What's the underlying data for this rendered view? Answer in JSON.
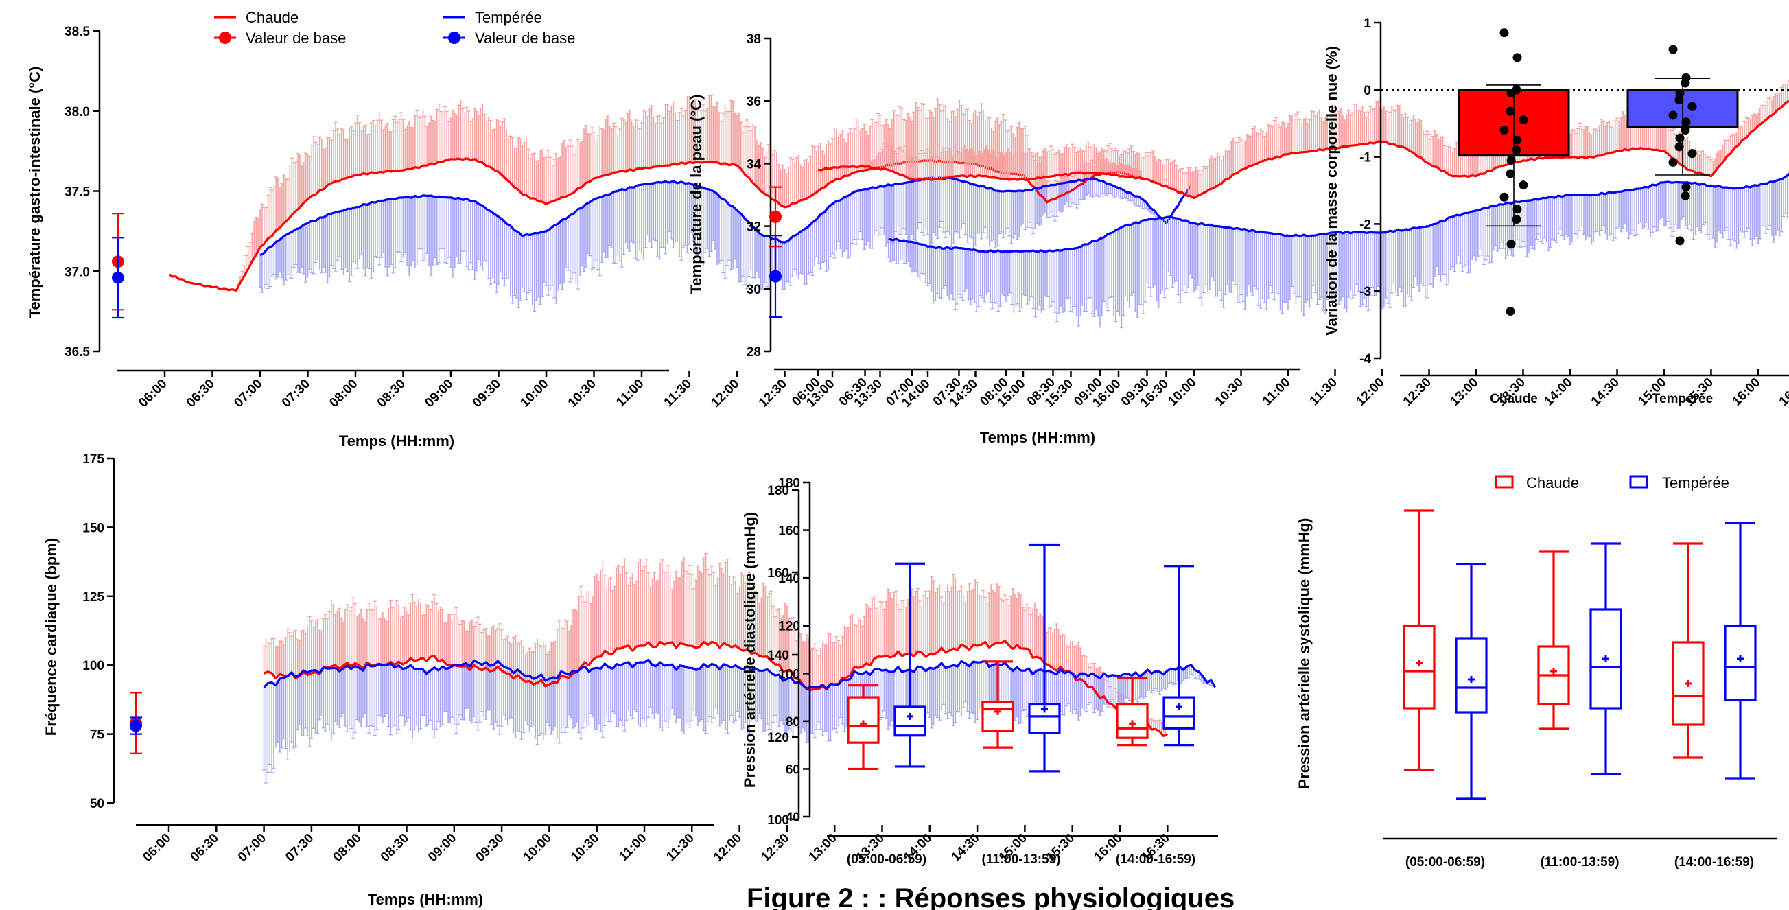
{
  "caption": "Figure 2 : : Réponses physiologiques",
  "colors": {
    "chaude": "#ff0000",
    "temperee": "#0000ff",
    "chaude_fill": "#f8a0a0",
    "temperee_fill": "#a8a8f5",
    "chaude_bar": "#ff0000",
    "temperee_bar": "#5050ff"
  },
  "chart_data": [
    {
      "type": "line",
      "ylabel": "Température gastro-intestinale (°C)",
      "xlabel": "Temps (HH:mm)",
      "ylim": [
        36.5,
        38.5
      ],
      "yticks": [
        "36.5",
        "37.0",
        "37.5",
        "38.0",
        "38.5"
      ],
      "xticks": [
        "06:00",
        "06:30",
        "07:00",
        "07:30",
        "08:00",
        "08:30",
        "09:00",
        "09:30",
        "10:00",
        "10:30",
        "11:00",
        "11:30",
        "12:00",
        "12:30",
        "13:00",
        "13:30",
        "14:00",
        "14:30",
        "15:00",
        "15:30",
        "16:00",
        "16:30"
      ],
      "legend": [
        "Chaude",
        "Valeur de base",
        "Tempérée",
        "Valeur de base"
      ],
      "baseline": [
        {
          "name": "Chaude",
          "mean": 37.06,
          "sd": 0.3
        },
        {
          "name": "Tempérée",
          "mean": 36.96,
          "sd": 0.25
        }
      ],
      "x": [
        6.05,
        6.25,
        6.5,
        6.75,
        7.0,
        7.25,
        7.5,
        7.75,
        8.0,
        8.25,
        8.5,
        8.75,
        9.0,
        9.25,
        9.5,
        9.75,
        10.0,
        10.25,
        10.5,
        10.75,
        11.0,
        11.25,
        11.5,
        11.75,
        12.0,
        12.25,
        12.5,
        12.75,
        13.0,
        13.25,
        13.5,
        13.75,
        14.0,
        14.25,
        14.5,
        14.75,
        15.0,
        15.25,
        15.5,
        15.75,
        16.0,
        16.25,
        16.5,
        16.75
      ],
      "series": [
        {
          "name": "Chaude",
          "x_start": 6.05,
          "x_end": 16.25,
          "values": [
            36.98,
            36.93,
            36.9,
            36.88,
            37.15,
            37.3,
            37.45,
            37.55,
            37.6,
            37.62,
            37.63,
            37.66,
            37.7,
            37.7,
            37.62,
            37.48,
            37.42,
            37.48,
            37.58,
            37.62,
            37.64,
            37.66,
            37.68,
            37.68,
            37.66,
            37.5,
            37.4,
            37.46,
            37.56,
            37.62,
            37.65,
            37.68,
            37.69,
            37.68,
            37.67,
            37.62,
            37.6,
            37.43,
            37.5,
            37.6,
            37.62,
            37.58,
            null,
            null
          ],
          "sd": [
            0,
            0,
            0,
            0,
            0.25,
            0.3,
            0.3,
            0.3,
            0.3,
            0.3,
            0.3,
            0.3,
            0.3,
            0.3,
            0.3,
            0.3,
            0.28,
            0.3,
            0.3,
            0.3,
            0.32,
            0.33,
            0.35,
            0.35,
            0.33,
            0.3,
            0.25,
            0.25,
            0.27,
            0.27,
            0.28,
            0.3,
            0.32,
            0.32,
            0.32,
            0.3,
            0.28,
            0.12,
            0.1,
            0.1,
            0.05,
            0.05,
            0,
            0
          ]
        },
        {
          "name": "Tempérée",
          "x_start": 7.0,
          "x_end": 16.75,
          "values": [
            null,
            null,
            null,
            null,
            37.1,
            37.22,
            37.3,
            37.36,
            37.4,
            37.44,
            37.46,
            37.47,
            37.46,
            37.44,
            37.34,
            37.22,
            37.25,
            37.35,
            37.45,
            37.5,
            37.54,
            37.56,
            37.55,
            37.5,
            37.38,
            37.23,
            37.18,
            37.28,
            37.42,
            37.5,
            37.53,
            37.55,
            37.58,
            37.58,
            37.54,
            37.5,
            37.5,
            37.53,
            37.56,
            37.58,
            37.52,
            37.45,
            37.3,
            37.53
          ],
          "sd": [
            0,
            0,
            0,
            0,
            0.2,
            0.25,
            0.3,
            0.35,
            0.38,
            0.4,
            0.4,
            0.4,
            0.4,
            0.4,
            0.4,
            0.4,
            0.4,
            0.4,
            0.4,
            0.4,
            0.4,
            0.4,
            0.4,
            0.4,
            0.4,
            0.3,
            0.25,
            0.3,
            0.33,
            0.33,
            0.32,
            0.33,
            0.35,
            0.35,
            0.33,
            0.3,
            0.25,
            0.2,
            0.15,
            0.1,
            0.05,
            0.05,
            0,
            0
          ]
        }
      ]
    },
    {
      "type": "line",
      "ylabel": "Température de la peau (°C)",
      "xlabel": "Temps (HH:mm)",
      "ylim": [
        28,
        38
      ],
      "yticks": [
        "28",
        "30",
        "32",
        "34",
        "36",
        "38"
      ],
      "xticks": [
        "06:00",
        "06:30",
        "07:00",
        "07:30",
        "08:00",
        "08:30",
        "09:00",
        "09:30",
        "10:00",
        "10:30",
        "11:00",
        "11:30",
        "12:00",
        "12:30",
        "13:00",
        "13:30",
        "14:00",
        "14:30",
        "15:00",
        "15:30",
        "16:00",
        "16:30"
      ],
      "baseline": [
        {
          "name": "Chaude",
          "mean": 32.3,
          "sd": 0.95
        },
        {
          "name": "Tempérée",
          "mean": 30.4,
          "sd": 1.3
        }
      ],
      "x": [
        6.0,
        6.25,
        6.5,
        6.75,
        7.0,
        7.25,
        7.5,
        7.75,
        8.0,
        8.25,
        8.5,
        8.75,
        9.0,
        9.25,
        9.5,
        9.75,
        10.0,
        10.25,
        10.5,
        10.75,
        11.0,
        11.25,
        11.5,
        11.75,
        12.0,
        12.25,
        12.5,
        12.75,
        13.0,
        13.25,
        13.5,
        13.75,
        14.0,
        14.25,
        14.5,
        14.75,
        15.0,
        15.25,
        15.5,
        15.75,
        16.0,
        16.25,
        16.5,
        16.75
      ],
      "series": [
        {
          "name": "Chaude",
          "x_start": 6.0,
          "x_end": 16.75,
          "values": [
            33.8,
            33.9,
            33.9,
            33.8,
            33.5,
            33.5,
            33.6,
            33.6,
            33.5,
            33.5,
            33.6,
            33.7,
            33.7,
            33.6,
            33.5,
            33.2,
            32.9,
            33.3,
            33.8,
            34.1,
            34.3,
            34.4,
            34.5,
            34.6,
            34.7,
            34.5,
            34.0,
            33.6,
            33.6,
            33.9,
            34.1,
            34.2,
            34.2,
            34.2,
            34.4,
            34.5,
            34.4,
            33.8,
            33.6,
            34.5,
            35.2,
            35.8,
            36.5,
            36.2
          ],
          "sd": [
            0,
            0,
            0,
            0.8,
            0.8,
            0.8,
            0.8,
            0.8,
            0.8,
            0.8,
            0.8,
            0.8,
            0.8,
            0.8,
            0.8,
            0.8,
            0.8,
            0.9,
            1.0,
            1.0,
            1.1,
            1.1,
            1.1,
            1.1,
            1.1,
            1.1,
            1.0,
            0.9,
            0.9,
            0.9,
            0.9,
            0.9,
            0.9,
            0.9,
            1.0,
            1.0,
            1.0,
            0.9,
            0.5,
            0.5,
            0.5,
            0.6,
            0.3,
            0.0
          ]
        },
        {
          "name": "Tempérée",
          "x_start": 6.75,
          "x_end": 16.75,
          "values": [
            null,
            null,
            null,
            31.6,
            31.5,
            31.3,
            31.3,
            31.2,
            31.2,
            31.2,
            31.2,
            31.3,
            31.6,
            32.0,
            32.2,
            32.3,
            32.1,
            32.0,
            31.9,
            31.8,
            31.7,
            31.7,
            31.8,
            31.8,
            31.8,
            31.9,
            32.0,
            32.3,
            32.5,
            32.7,
            32.8,
            32.9,
            33.0,
            33.0,
            33.1,
            33.2,
            33.4,
            33.4,
            33.3,
            33.2,
            33.3,
            33.5,
            34.0,
            34.5
          ],
          "sd": [
            0,
            0,
            0,
            0.6,
            0.8,
            1.5,
            1.6,
            1.6,
            1.6,
            1.7,
            1.8,
            2.0,
            2.3,
            2.7,
            2.5,
            2.2,
            2.1,
            2.1,
            2.1,
            2.1,
            2.1,
            2.1,
            2.1,
            2.1,
            2.1,
            2.1,
            1.9,
            1.7,
            1.6,
            1.5,
            1.5,
            1.4,
            1.3,
            1.3,
            1.3,
            1.3,
            1.4,
            1.4,
            1.6,
            1.6,
            1.6,
            1.6,
            0.6,
            0.0
          ]
        }
      ]
    },
    {
      "type": "bar",
      "ylabel": "Variation de la masse corporelle nue (%)",
      "ylim": [
        -4,
        1
      ],
      "yticks": [
        "-4",
        "-3",
        "-2",
        "-1",
        "0",
        "1"
      ],
      "categories": [
        "Chaude",
        "Tempérée"
      ],
      "values": [
        -0.98,
        -0.55
      ],
      "errors": [
        1.05,
        0.72
      ],
      "points": [
        [
          0.85,
          0.48,
          0.0,
          -0.05,
          -0.32,
          -0.45,
          -0.6,
          -0.75,
          -0.9,
          -1.05,
          -1.25,
          -1.42,
          -1.6,
          -1.78,
          -1.93,
          -2.3,
          -3.3
        ],
        [
          0.6,
          0.18,
          0.1,
          -0.05,
          -0.15,
          -0.25,
          -0.38,
          -0.48,
          -0.6,
          -0.72,
          -0.85,
          -0.95,
          -1.08,
          -1.45,
          -1.58,
          -2.25
        ]
      ]
    },
    {
      "type": "line",
      "ylabel": "Fréquence cardiaque (bpm)",
      "xlabel": "Temps (HH:mm)",
      "ylim": [
        50,
        175
      ],
      "yticks": [
        "50",
        "75",
        "100",
        "125",
        "150",
        "175"
      ],
      "xticks": [
        "06:00",
        "06:30",
        "07:00",
        "07:30",
        "08:00",
        "08:30",
        "09:00",
        "09:30",
        "10:00",
        "10:30",
        "11:00",
        "11:30",
        "12:00",
        "12:30",
        "13:00",
        "13:30",
        "14:00",
        "14:30",
        "15:00",
        "15:30",
        "16:00",
        "16:30"
      ],
      "baseline": [
        {
          "name": "Chaude",
          "mean": 79,
          "sd": 11
        },
        {
          "name": "Tempérée",
          "mean": 78,
          "sd": 3
        }
      ],
      "x": [
        7.0,
        7.25,
        7.5,
        7.75,
        8.0,
        8.25,
        8.5,
        8.75,
        9.0,
        9.25,
        9.5,
        9.75,
        10.0,
        10.25,
        10.5,
        10.75,
        11.0,
        11.25,
        11.5,
        11.75,
        12.0,
        12.25,
        12.5,
        12.75,
        13.0,
        13.25,
        13.5,
        13.75,
        14.0,
        14.25,
        14.5,
        14.75,
        15.0,
        15.25,
        15.5,
        15.75,
        16.0,
        16.25,
        16.5,
        16.75,
        17.0
      ],
      "series": [
        {
          "name": "Chaude",
          "x_start": 7.0,
          "x_end": 16.5,
          "values": [
            97,
            96,
            97,
            100,
            100,
            100,
            101,
            103,
            100,
            99,
            98,
            94,
            93,
            97,
            103,
            106,
            107,
            108,
            107,
            108,
            106,
            103,
            98,
            91,
            93,
            99,
            103,
            104,
            104,
            106,
            107,
            108,
            106,
            100,
            97,
            90,
            83,
            78,
            75,
            null,
            null
          ],
          "sd": [
            10,
            14,
            17,
            20,
            20,
            19,
            20,
            19,
            17,
            15,
            14,
            12,
            14,
            22,
            28,
            27,
            27,
            25,
            27,
            27,
            25,
            23,
            20,
            15,
            16,
            18,
            21,
            20,
            23,
            22,
            20,
            18,
            17,
            14,
            11,
            9,
            6,
            4,
            3,
            0,
            0
          ]
        },
        {
          "name": "Tempérée",
          "x_start": 7.0,
          "x_end": 17.0,
          "values": [
            92,
            96,
            98,
            99,
            99,
            100,
            99,
            98,
            100,
            101,
            100,
            96,
            95,
            98,
            99,
            100,
            101,
            100,
            99,
            100,
            99,
            98,
            95,
            92,
            93,
            97,
            98,
            98,
            99,
            100,
            101,
            100,
            98,
            98,
            97,
            96,
            96,
            97,
            98,
            100,
            92
          ],
          "sd": [
            30,
            25,
            22,
            21,
            21,
            21,
            21,
            20,
            20,
            20,
            21,
            20,
            20,
            20,
            21,
            20,
            20,
            20,
            20,
            20,
            20,
            19,
            18,
            17,
            17,
            17,
            18,
            18,
            18,
            18,
            18,
            18,
            17,
            16,
            14,
            12,
            10,
            8,
            6,
            4,
            0
          ]
        }
      ]
    },
    {
      "type": "box",
      "ylabel": "Pression artérielle diastolique (mmHg)",
      "ylim": [
        40,
        180
      ],
      "yticks": [
        "40",
        "60",
        "80",
        "100",
        "120",
        "140",
        "160",
        "180"
      ],
      "categories": [
        "(05:00-06:59)",
        "(11:00-13:59)",
        "(14:00-16:59)"
      ],
      "series": [
        {
          "name": "Chaude",
          "boxes": [
            {
              "min": 60,
              "q1": 71,
              "median": 78,
              "q3": 90,
              "max": 95,
              "mean": 79
            },
            {
              "min": 69,
              "q1": 76,
              "median": 85,
              "q3": 88,
              "max": 105,
              "mean": 84
            },
            {
              "min": 70,
              "q1": 73,
              "median": 77,
              "q3": 87,
              "max": 98,
              "mean": 79
            }
          ]
        },
        {
          "name": "Tempérée",
          "boxes": [
            {
              "min": 61,
              "q1": 74,
              "median": 78,
              "q3": 86,
              "max": 146,
              "mean": 82
            },
            {
              "min": 59,
              "q1": 75,
              "median": 82,
              "q3": 87,
              "max": 154,
              "mean": 85
            },
            {
              "min": 70,
              "q1": 77,
              "median": 82,
              "q3": 90,
              "max": 145,
              "mean": 86
            }
          ]
        }
      ]
    },
    {
      "type": "box",
      "ylabel": "Pression artérielle systolique (mmHg)",
      "ylim": [
        100,
        180
      ],
      "yticks": [
        "100",
        "120",
        "140",
        "160",
        "180"
      ],
      "categories": [
        "(05:00-06:59)",
        "(11:00-13:59)",
        "(14:00-16:59)"
      ],
      "legend": [
        "Chaude",
        "Tempérée"
      ],
      "series": [
        {
          "name": "Chaude",
          "boxes": [
            {
              "min": 112,
              "q1": 127,
              "median": 136,
              "q3": 147,
              "max": 175,
              "mean": 138
            },
            {
              "min": 122,
              "q1": 128,
              "median": 135,
              "q3": 142,
              "max": 165,
              "mean": 136
            },
            {
              "min": 115,
              "q1": 123,
              "median": 130,
              "q3": 143,
              "max": 167,
              "mean": 133
            }
          ]
        },
        {
          "name": "Tempérée",
          "boxes": [
            {
              "min": 105,
              "q1": 126,
              "median": 132,
              "q3": 144,
              "max": 162,
              "mean": 134
            },
            {
              "min": 111,
              "q1": 127,
              "median": 137,
              "q3": 151,
              "max": 167,
              "mean": 139
            },
            {
              "min": 110,
              "q1": 129,
              "median": 137,
              "q3": 147,
              "max": 172,
              "mean": 139
            }
          ]
        }
      ]
    }
  ]
}
